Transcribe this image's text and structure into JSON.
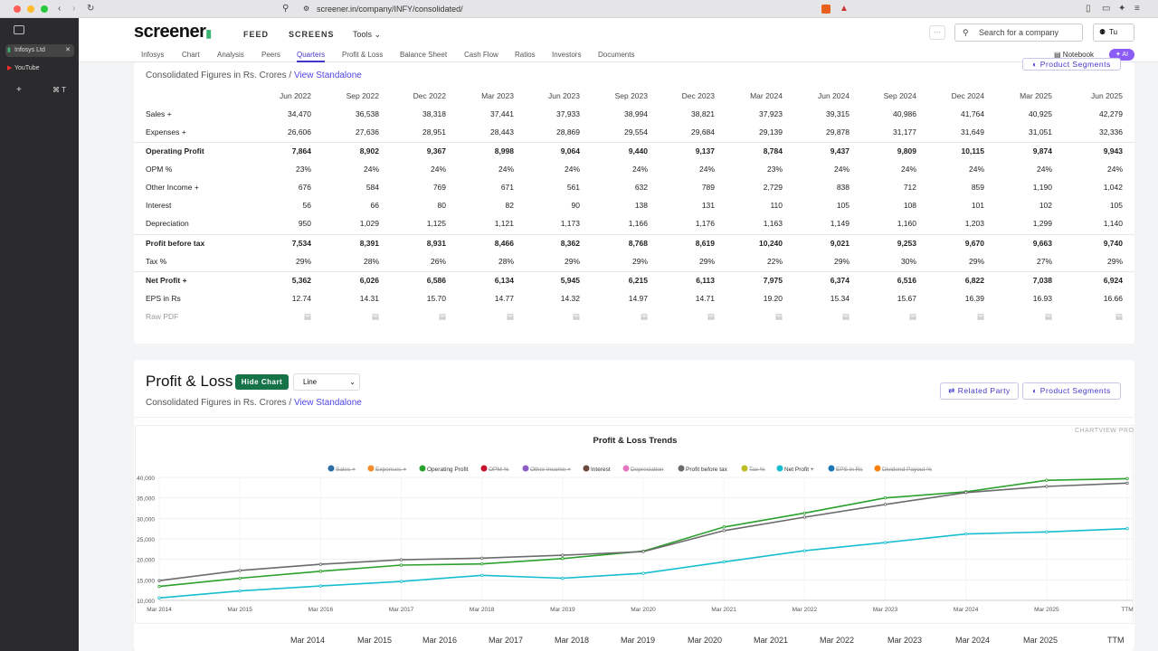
{
  "browser": {
    "url": "screener.in/company/INFY/consolidated/",
    "tabs": [
      {
        "label": "Infosys Ltd"
      },
      {
        "label": "YouTube"
      }
    ]
  },
  "header": {
    "logo": "screener",
    "nav": [
      "FEED",
      "SCREENS",
      "Tools"
    ],
    "search_placeholder": "Search for a company",
    "user": "Tu",
    "more": "···"
  },
  "subnav": {
    "items": [
      "Infosys",
      "Chart",
      "Analysis",
      "Peers",
      "Quarters",
      "Profit & Loss",
      "Balance Sheet",
      "Cash Flow",
      "Ratios",
      "Investors",
      "Documents"
    ],
    "active": "Quarters",
    "notebook": "Notebook",
    "ai": "AI"
  },
  "quarters": {
    "subtitle_prefix": "Consolidated Figures in Rs. Crores / ",
    "subtitle_link": "View Standalone",
    "product_segments": "Product Segments",
    "columns": [
      "Jun 2022",
      "Sep 2022",
      "Dec 2022",
      "Mar 2023",
      "Jun 2023",
      "Sep 2023",
      "Dec 2023",
      "Mar 2024",
      "Jun 2024",
      "Sep 2024",
      "Dec 2024",
      "Mar 2025",
      "Jun 2025"
    ],
    "rows": [
      {
        "label": "Sales +",
        "bold": false,
        "values": [
          "34,470",
          "36,538",
          "38,318",
          "37,441",
          "37,933",
          "38,994",
          "38,821",
          "37,923",
          "39,315",
          "40,986",
          "41,764",
          "40,925",
          "42,279"
        ]
      },
      {
        "label": "Expenses +",
        "bold": false,
        "values": [
          "26,606",
          "27,636",
          "28,951",
          "28,443",
          "28,869",
          "29,554",
          "29,684",
          "29,139",
          "29,878",
          "31,177",
          "31,649",
          "31,051",
          "32,336"
        ]
      },
      {
        "label": "Operating Profit",
        "bold": true,
        "values": [
          "7,864",
          "8,902",
          "9,367",
          "8,998",
          "9,064",
          "9,440",
          "9,137",
          "8,784",
          "9,437",
          "9,809",
          "10,115",
          "9,874",
          "9,943"
        ]
      },
      {
        "label": "OPM %",
        "bold": false,
        "values": [
          "23%",
          "24%",
          "24%",
          "24%",
          "24%",
          "24%",
          "24%",
          "23%",
          "24%",
          "24%",
          "24%",
          "24%",
          "24%"
        ]
      },
      {
        "label": "Other Income +",
        "bold": false,
        "values": [
          "676",
          "584",
          "769",
          "671",
          "561",
          "632",
          "789",
          "2,729",
          "838",
          "712",
          "859",
          "1,190",
          "1,042"
        ]
      },
      {
        "label": "Interest",
        "bold": false,
        "values": [
          "56",
          "66",
          "80",
          "82",
          "90",
          "138",
          "131",
          "110",
          "105",
          "108",
          "101",
          "102",
          "105"
        ]
      },
      {
        "label": "Depreciation",
        "bold": false,
        "values": [
          "950",
          "1,029",
          "1,125",
          "1,121",
          "1,173",
          "1,166",
          "1,176",
          "1,163",
          "1,149",
          "1,160",
          "1,203",
          "1,299",
          "1,140"
        ]
      },
      {
        "label": "Profit before tax",
        "bold": true,
        "values": [
          "7,534",
          "8,391",
          "8,931",
          "8,466",
          "8,362",
          "8,768",
          "8,619",
          "10,240",
          "9,021",
          "9,253",
          "9,670",
          "9,663",
          "9,740"
        ]
      },
      {
        "label": "Tax %",
        "bold": false,
        "values": [
          "29%",
          "28%",
          "26%",
          "28%",
          "29%",
          "29%",
          "29%",
          "22%",
          "29%",
          "30%",
          "29%",
          "27%",
          "29%"
        ]
      },
      {
        "label": "Net Profit +",
        "bold": true,
        "values": [
          "5,362",
          "6,026",
          "6,586",
          "6,134",
          "5,945",
          "6,215",
          "6,113",
          "7,975",
          "6,374",
          "6,516",
          "6,822",
          "7,038",
          "6,924"
        ]
      },
      {
        "label": "EPS in Rs",
        "bold": false,
        "values": [
          "12.74",
          "14.31",
          "15.70",
          "14.77",
          "14.32",
          "14.97",
          "14.71",
          "19.20",
          "15.34",
          "15.67",
          "16.39",
          "16.93",
          "16.66"
        ]
      },
      {
        "label": "Raw PDF",
        "bold": false,
        "values": []
      }
    ]
  },
  "profit_loss": {
    "title": "Profit & Loss",
    "hide_chart": "Hide Chart",
    "chart_type_select": "Line",
    "subtitle_prefix": "Consolidated Figures in Rs. Crores / ",
    "subtitle_link": "View Standalone",
    "related_party": "Related Party",
    "product_segments": "Product Segments",
    "chartview": "CHARTVIEW PRO",
    "bottom_years": [
      "Mar 2014",
      "Mar 2015",
      "Mar 2016",
      "Mar 2017",
      "Mar 2018",
      "Mar 2019",
      "Mar 2020",
      "Mar 2021",
      "Mar 2022",
      "Mar 2023",
      "Mar 2024",
      "Mar 2025",
      "TTM"
    ]
  },
  "chart_data": {
    "type": "line",
    "title": "Profit & Loss Trends",
    "categories": [
      "Mar 2014",
      "Mar 2015",
      "Mar 2016",
      "Mar 2017",
      "Mar 2018",
      "Mar 2019",
      "Mar 2020",
      "Mar 2021",
      "Mar 2022",
      "Mar 2023",
      "Mar 2024",
      "Mar 2025",
      "TTM"
    ],
    "ylim": [
      10000,
      40000
    ],
    "yticks": [
      "10,000",
      "15,000",
      "20,000",
      "25,000",
      "30,000",
      "35,000",
      "40,000"
    ],
    "legend": [
      {
        "name": "Sales +",
        "color": "#2e6da4",
        "hidden": true
      },
      {
        "name": "Expenses +",
        "color": "#f28e2b",
        "hidden": true
      },
      {
        "name": "Operating Profit",
        "color": "#2ca02c",
        "hidden": false
      },
      {
        "name": "OPM %",
        "color": "#c4122f",
        "hidden": true
      },
      {
        "name": "Other Income +",
        "color": "#8e5cc4",
        "hidden": true
      },
      {
        "name": "Interest",
        "color": "#6b4a3a",
        "hidden": false
      },
      {
        "name": "Depreciation",
        "color": "#e377c2",
        "hidden": true
      },
      {
        "name": "Profit before tax",
        "color": "#6b6b6b",
        "hidden": false
      },
      {
        "name": "Tax %",
        "color": "#bcbd22",
        "hidden": true
      },
      {
        "name": "Net Profit +",
        "color": "#17becf",
        "hidden": false
      },
      {
        "name": "EPS in Rs",
        "color": "#1f77b4",
        "hidden": true
      },
      {
        "name": "Dividend Payout %",
        "color": "#ff7f0e",
        "hidden": true
      }
    ],
    "series": [
      {
        "name": "Operating Profit",
        "color": "#2ca02c",
        "values": [
          13400,
          15400,
          17100,
          18600,
          18900,
          20200,
          22000,
          27900,
          31300,
          35000,
          36500,
          39300,
          39700
        ]
      },
      {
        "name": "Profit before tax",
        "color": "#6b6b6b",
        "values": [
          14800,
          17300,
          18800,
          19900,
          20300,
          21000,
          21900,
          27000,
          30300,
          33400,
          36300,
          37800,
          38600
        ]
      },
      {
        "name": "Net Profit +",
        "color": "#17becf",
        "values": [
          10600,
          12300,
          13500,
          14600,
          16100,
          15400,
          16600,
          19400,
          22100,
          24100,
          26200,
          26700,
          27500
        ]
      }
    ]
  }
}
